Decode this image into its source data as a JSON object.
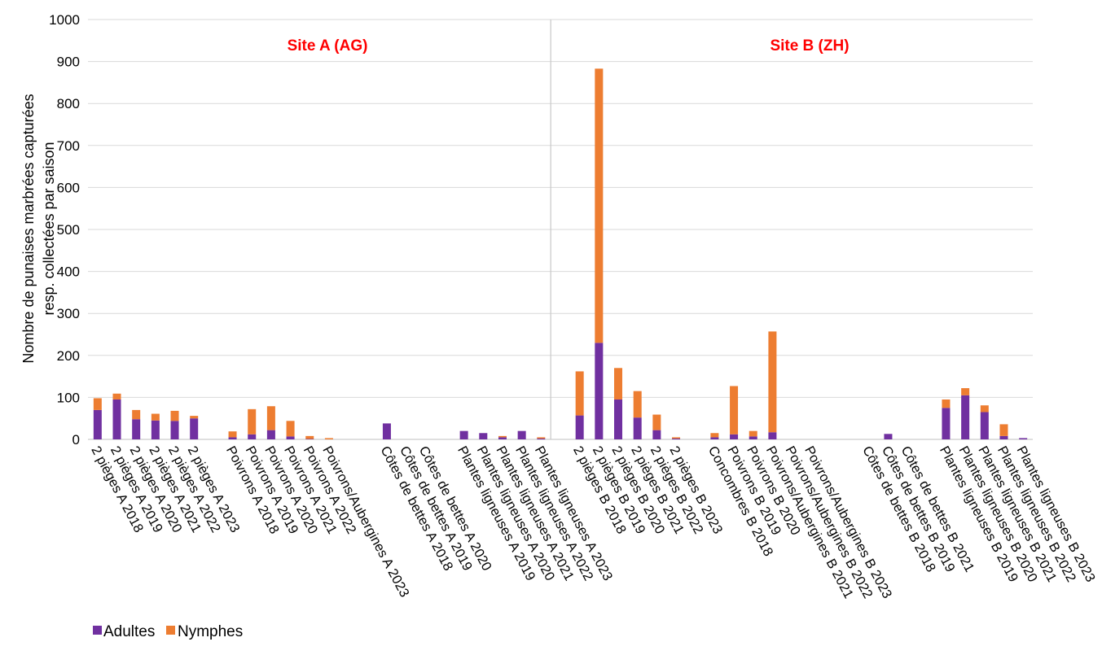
{
  "chart_data": {
    "type": "bar",
    "stacked": true,
    "ylabel_lines": [
      "Nombre de punaises marbrées capturées",
      "resp. collectées par saison"
    ],
    "xlabel": "",
    "ylim": [
      0,
      1000
    ],
    "yticks": [
      0,
      100,
      200,
      300,
      400,
      500,
      600,
      700,
      800,
      900,
      1000
    ],
    "grid": true,
    "legend_position": "bottom-left",
    "annotations": [
      {
        "text": "Site A (AG)",
        "color": "#ff0000"
      },
      {
        "text": "Site B (ZH)",
        "color": "#ff0000"
      }
    ],
    "categories": [
      "2 pièges A 2018",
      "2 pièges A 2019",
      "2 pièges A 2020",
      "2 pièges A 2021",
      "2 pièges A 2022",
      "2 pièges A 2023",
      "Poivrons A 2018",
      "Poivrons A 2019",
      "Poivrons A 2020",
      "Poivrons A 2021",
      "Poivrons A 2022",
      "Poivrons/Aubergines A 2023",
      "Côtes de bettes A 2018",
      "Côtes de bettes A 2019",
      "Côtes de bettes A 2020",
      "Plantes ligneuses A 2019",
      "Plantes ligneuses A 2020",
      "Plantes ligneuses A 2021",
      "Plantes ligneuses A 2022",
      "Plantes ligneuses A 2023",
      "2 pièges B 2018",
      "2 pièges B 2019",
      "2 pièges B 2020",
      "2 pièges B 2021",
      "2 pièges B 2022",
      "2 pièges B 2023",
      "Concombres B 2018",
      "Poivrons B 2019",
      "Poivrons B 2020",
      "Poivrons/Aubergines B 2021",
      "Poivrons/Aubergines B 2022",
      "Poivrons/Aubergines B 2023",
      "Côtes de bettes B 2018",
      "Côtes de bettes B 2019",
      "Côtes de bettes B 2021",
      "Plantes ligneuses B 2019",
      "Plantes ligneuses B 2020",
      "Plantes ligneuses B 2021",
      "Plantes ligneuses B 2022",
      "Plantes ligneuses B 2023"
    ],
    "slot_index": [
      0,
      1,
      2,
      3,
      4,
      5,
      7,
      8,
      9,
      10,
      11,
      12,
      15,
      16,
      17,
      19,
      20,
      21,
      22,
      23,
      25,
      26,
      27,
      28,
      29,
      30,
      32,
      33,
      34,
      35,
      36,
      37,
      40,
      41,
      42,
      44,
      45,
      46,
      47,
      48
    ],
    "slot_count": 49,
    "site_divider_after_slot": 23.5,
    "series": [
      {
        "name": "Adultes",
        "color": "#7030a0",
        "values": [
          70,
          95,
          48,
          45,
          44,
          50,
          5,
          12,
          22,
          7,
          1,
          0,
          38,
          0,
          0,
          20,
          15,
          5,
          20,
          2,
          57,
          230,
          95,
          52,
          22,
          2,
          5,
          12,
          7,
          17,
          0,
          0,
          0,
          13,
          0,
          75,
          105,
          65,
          8,
          3
        ]
      },
      {
        "name": "Nymphes",
        "color": "#ed7d31",
        "values": [
          28,
          14,
          22,
          16,
          24,
          6,
          14,
          60,
          57,
          37,
          7,
          3,
          0,
          0,
          0,
          0,
          0,
          3,
          0,
          3,
          105,
          653,
          75,
          63,
          37,
          3,
          10,
          115,
          13,
          240,
          0,
          0,
          0,
          0,
          0,
          20,
          17,
          16,
          28,
          0
        ]
      }
    ]
  }
}
